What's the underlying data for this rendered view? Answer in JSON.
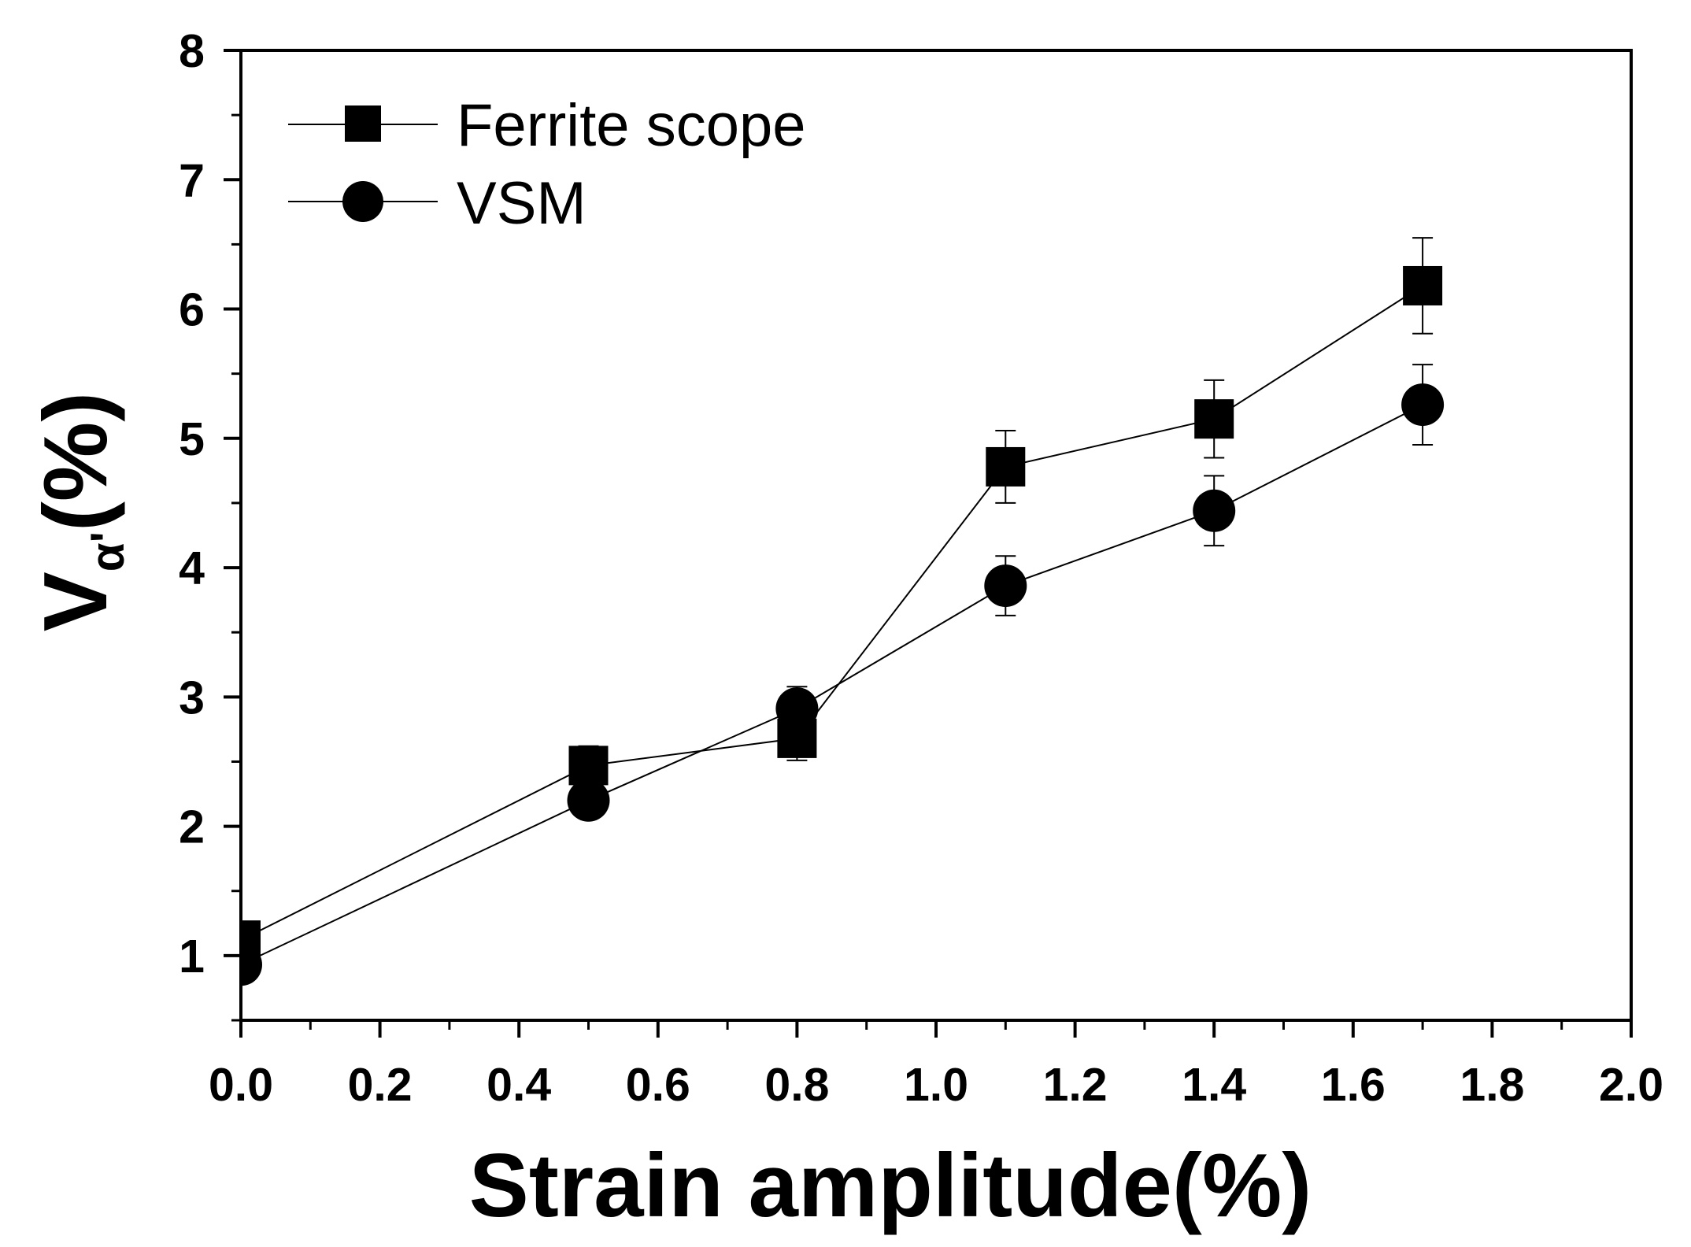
{
  "chart_data": {
    "type": "line",
    "xlabel": "Strain amplitude(%)",
    "ylabel": {
      "main": "V",
      "sub": "α'",
      "unit": "(%)"
    },
    "xlim": [
      0.0,
      2.0
    ],
    "ylim": [
      0.5,
      8.0
    ],
    "x_ticks": [
      0.0,
      0.2,
      0.4,
      0.6,
      0.8,
      1.0,
      1.2,
      1.4,
      1.6,
      1.8,
      2.0
    ],
    "x_tick_labels": [
      "0.0",
      "0.2",
      "0.4",
      "0.6",
      "0.8",
      "1.0",
      "1.2",
      "1.4",
      "1.6",
      "1.8",
      "2.0"
    ],
    "x_minor_step": 0.1,
    "y_ticks": [
      1,
      2,
      3,
      4,
      5,
      6,
      7,
      8
    ],
    "y_tick_labels": [
      "1",
      "2",
      "3",
      "4",
      "5",
      "6",
      "7",
      "8"
    ],
    "y_minor_step": 0.5,
    "grid": false,
    "legend": {
      "position": "top-left"
    },
    "series": [
      {
        "name": "Ferrite scope",
        "marker": "square",
        "color": "#000000",
        "x": [
          0.0,
          0.5,
          0.8,
          1.1,
          1.4,
          1.7
        ],
        "y": [
          1.12,
          2.47,
          2.68,
          4.78,
          5.15,
          6.18
        ],
        "y_err": [
          0.0,
          0.15,
          0.17,
          0.28,
          0.3,
          0.37
        ]
      },
      {
        "name": "VSM",
        "marker": "circle",
        "color": "#000000",
        "x": [
          0.0,
          0.5,
          0.8,
          1.1,
          1.4,
          1.7
        ],
        "y": [
          0.93,
          2.2,
          2.91,
          3.86,
          4.44,
          5.26
        ],
        "y_err": [
          0.0,
          0.0,
          0.17,
          0.23,
          0.27,
          0.31
        ]
      }
    ]
  }
}
